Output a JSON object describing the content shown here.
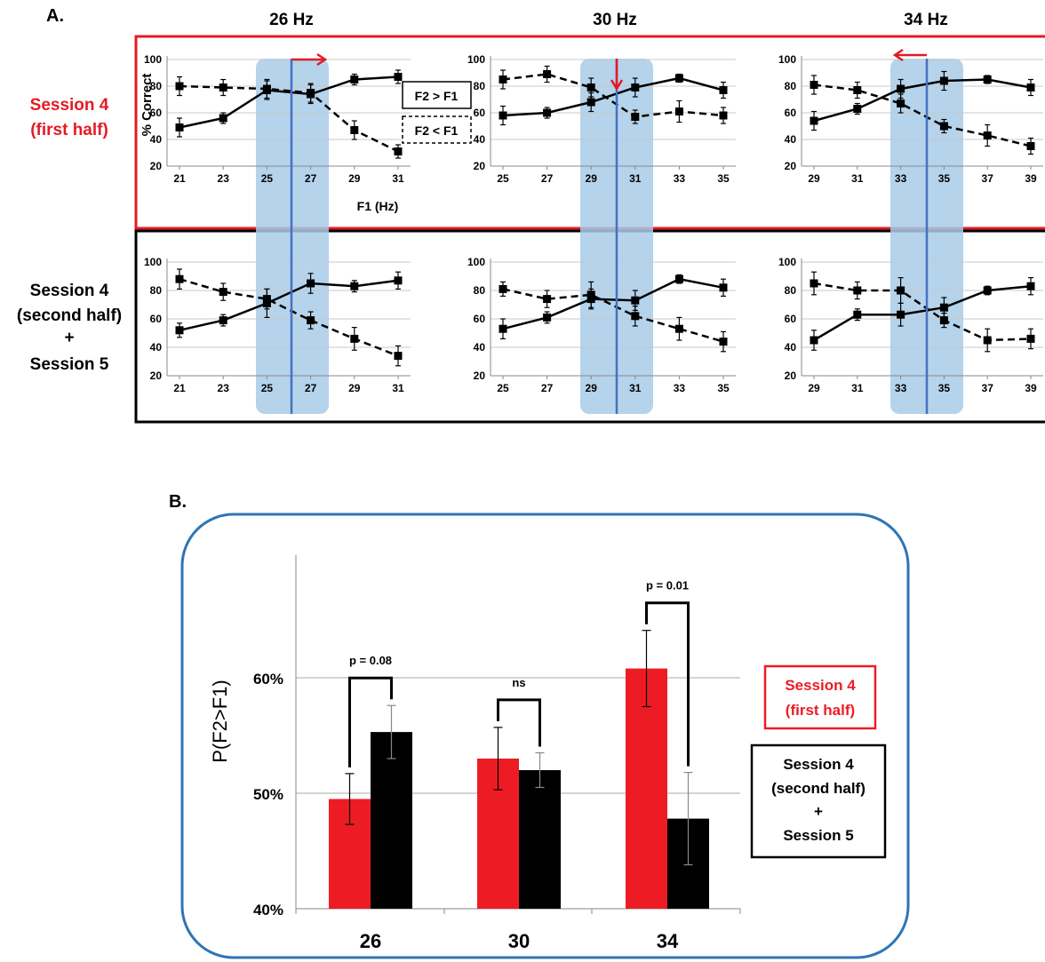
{
  "panel_a": {
    "label": "A.",
    "freq_titles": [
      "26 Hz",
      "30 Hz",
      "34 Hz"
    ],
    "row_labels": {
      "session4_first": [
        "Session 4",
        "(first half)"
      ],
      "session4_second_session5": [
        "Session 4",
        "(second half)",
        "+",
        "Session 5"
      ]
    },
    "y_axis_label": "% Correct",
    "x_axis_label": "F1 (Hz)",
    "legend": {
      "solid": "F2 > F1",
      "dashed": "F2 < F1"
    },
    "colors": {
      "first_half": "#e31b23",
      "band": "#a8cbe8",
      "ref_line": "#4472c4",
      "arrow": "#e31b23"
    }
  },
  "panel_b": {
    "label": "B.",
    "y_axis_label": "P(F2>F1)",
    "legend": {
      "first_half": [
        "Session 4",
        "(first half)"
      ],
      "second_half": [
        "Session 4",
        "(second half)",
        "+",
        "Session 5"
      ]
    },
    "colors": {
      "first_half": "#ed1c24",
      "second_half": "#000000",
      "frame": "#2e75b6"
    }
  },
  "chart_data": [
    {
      "type": "line",
      "panel": "A",
      "row": "first half",
      "column": "26 Hz",
      "x": [
        21,
        23,
        25,
        27,
        29,
        31
      ],
      "ylim": [
        20,
        100
      ],
      "yticks": [
        20,
        40,
        60,
        80,
        100
      ],
      "series": [
        {
          "name": "F2 > F1",
          "values": [
            49,
            56,
            77,
            74,
            85,
            87
          ],
          "err": [
            7,
            4,
            7,
            7,
            4,
            5
          ]
        },
        {
          "name": "F2 < F1",
          "values": [
            80,
            79,
            78,
            75,
            47,
            31
          ],
          "err": [
            7,
            6,
            7,
            7,
            7,
            5
          ]
        }
      ],
      "xlabel": "F1 (Hz)",
      "ylabel": "% Correct"
    },
    {
      "type": "line",
      "panel": "A",
      "row": "first half",
      "column": "30 Hz",
      "x": [
        25,
        27,
        29,
        31,
        33,
        35
      ],
      "ylim": [
        20,
        100
      ],
      "yticks": [
        20,
        40,
        60,
        80,
        100
      ],
      "series": [
        {
          "name": "F2 > F1",
          "values": [
            58,
            60,
            68,
            79,
            86,
            77
          ],
          "err": [
            7,
            4,
            7,
            7,
            3,
            6
          ]
        },
        {
          "name": "F2 < F1",
          "values": [
            85,
            89,
            79,
            57,
            61,
            58
          ],
          "err": [
            7,
            6,
            7,
            5,
            8,
            6
          ]
        }
      ]
    },
    {
      "type": "line",
      "panel": "A",
      "row": "first half",
      "column": "34 Hz",
      "x": [
        29,
        31,
        33,
        35,
        37,
        39
      ],
      "ylim": [
        20,
        100
      ],
      "yticks": [
        20,
        40,
        60,
        80,
        100
      ],
      "series": [
        {
          "name": "F2 > F1",
          "values": [
            54,
            63,
            78,
            84,
            85,
            79
          ],
          "err": [
            7,
            4,
            7,
            7,
            3,
            6
          ]
        },
        {
          "name": "F2 < F1",
          "values": [
            81,
            77,
            67,
            50,
            43,
            35
          ],
          "err": [
            7,
            6,
            7,
            5,
            8,
            6
          ]
        }
      ]
    },
    {
      "type": "line",
      "panel": "A",
      "row": "second half + session 5",
      "column": "26 Hz",
      "x": [
        21,
        23,
        25,
        27,
        29,
        31
      ],
      "ylim": [
        20,
        100
      ],
      "yticks": [
        20,
        40,
        60,
        80,
        100
      ],
      "series": [
        {
          "name": "F2 > F1",
          "values": [
            52,
            59,
            71,
            85,
            83,
            87
          ],
          "err": [
            5,
            4,
            10,
            7,
            4,
            6
          ]
        },
        {
          "name": "F2 < F1",
          "values": [
            88,
            79,
            74,
            59,
            46,
            34
          ],
          "err": [
            7,
            6,
            7,
            6,
            8,
            7
          ]
        }
      ]
    },
    {
      "type": "line",
      "panel": "A",
      "row": "second half + session 5",
      "column": "30 Hz",
      "x": [
        25,
        27,
        29,
        31,
        33,
        35
      ],
      "ylim": [
        20,
        100
      ],
      "yticks": [
        20,
        40,
        60,
        80,
        100
      ],
      "series": [
        {
          "name": "F2 > F1",
          "values": [
            53,
            61,
            74,
            73,
            88,
            82
          ],
          "err": [
            7,
            4,
            7,
            7,
            3,
            6
          ]
        },
        {
          "name": "F2 < F1",
          "values": [
            81,
            74,
            77,
            62,
            53,
            44
          ],
          "err": [
            5,
            6,
            9,
            7,
            8,
            7
          ]
        }
      ]
    },
    {
      "type": "line",
      "panel": "A",
      "row": "second half + session 5",
      "column": "34 Hz",
      "x": [
        29,
        31,
        33,
        35,
        37,
        39
      ],
      "ylim": [
        20,
        100
      ],
      "yticks": [
        20,
        40,
        60,
        80,
        100
      ],
      "series": [
        {
          "name": "F2 > F1",
          "values": [
            45,
            63,
            63,
            68,
            80,
            83
          ],
          "err": [
            7,
            4,
            8,
            7,
            3,
            6
          ]
        },
        {
          "name": "F2 < F1",
          "values": [
            85,
            80,
            80,
            59,
            45,
            46
          ],
          "err": [
            8,
            6,
            9,
            5,
            8,
            7
          ]
        }
      ]
    },
    {
      "type": "bar",
      "panel": "B",
      "categories": [
        "26",
        "30",
        "34"
      ],
      "series": [
        {
          "name": "Session 4 (first half)",
          "values": [
            49.5,
            53.0,
            60.8
          ],
          "err": [
            2.2,
            2.7,
            3.3
          ]
        },
        {
          "name": "Session 4 (second half) + Session 5",
          "values": [
            55.3,
            52.0,
            47.8
          ],
          "err": [
            2.3,
            1.5,
            4.0
          ]
        }
      ],
      "ylim": [
        40,
        65
      ],
      "yticks": [
        "40%",
        "50%",
        "60%"
      ],
      "ylabel": "P(F2>F1)",
      "annotations": [
        "p = 0.08",
        "ns",
        "p = 0.01"
      ]
    }
  ]
}
